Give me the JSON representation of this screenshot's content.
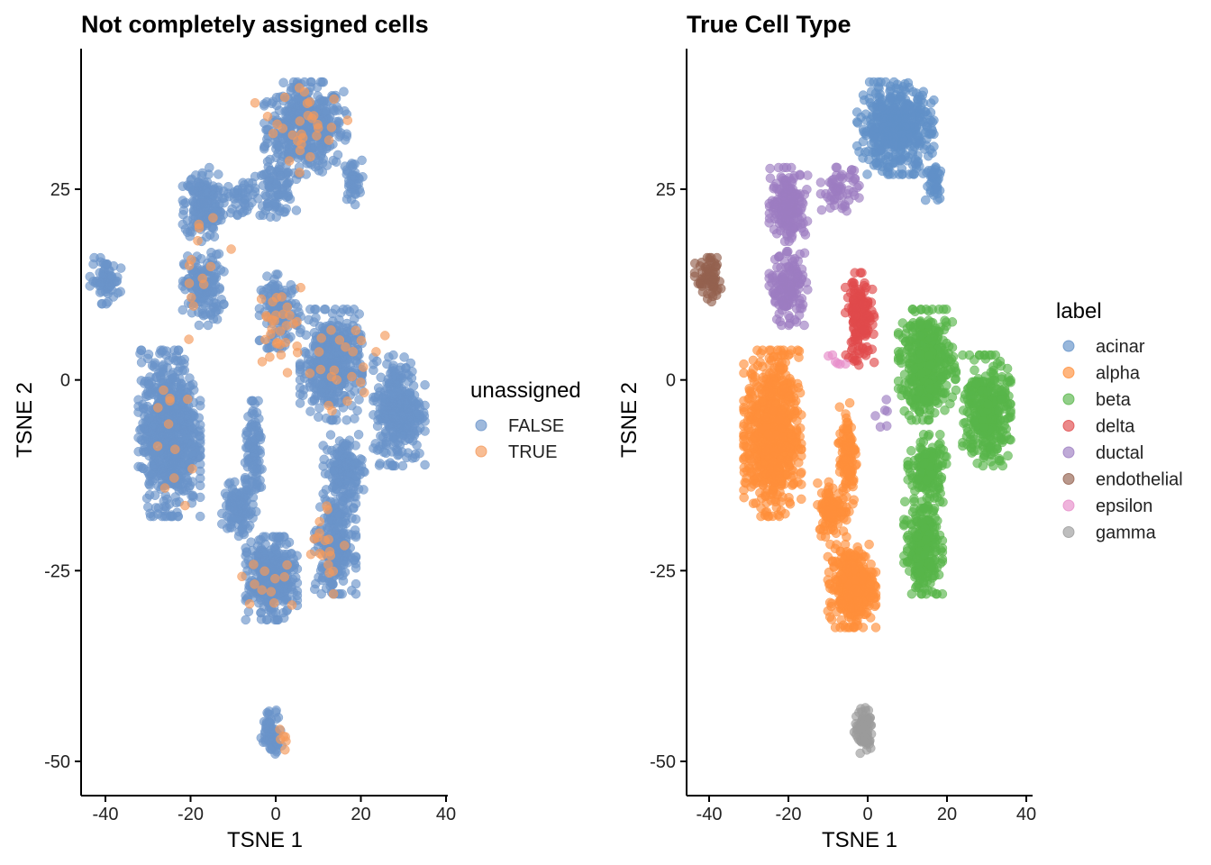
{
  "colors": {
    "acinar": "#6191C8",
    "alpha": "#FF8F3A",
    "beta": "#58B549",
    "delta": "#E04A4B",
    "ductal": "#9C7DC1",
    "endothelial": "#93614F",
    "epsilon": "#E68CC9",
    "gamma": "#9B9B9B",
    "false": "#6A93C9",
    "true": "#F4995B"
  },
  "chart_data": [
    {
      "type": "scatter",
      "title": "Not completely assigned cells",
      "xlabel": "TSNE 1",
      "ylabel": "TSNE 2",
      "xlim": [
        -45,
        40
      ],
      "ylim": [
        -54,
        43
      ],
      "xticks": [
        -40,
        -20,
        0,
        20,
        40
      ],
      "yticks": [
        25,
        0,
        -25,
        -50
      ],
      "legend": {
        "title": "unassigned",
        "position": "right",
        "entries": [
          {
            "label": "FALSE",
            "key": "false"
          },
          {
            "label": "TRUE",
            "key": "true"
          }
        ]
      },
      "clusters": [
        {
          "cx": 7,
          "cy": 33,
          "rx": 8,
          "ry": 5,
          "n": 460,
          "key": "false"
        },
        {
          "cx": 0,
          "cy": 25,
          "rx": 4,
          "ry": 3,
          "n": 90,
          "key": "false"
        },
        {
          "cx": 18,
          "cy": 26,
          "rx": 2,
          "ry": 2.5,
          "n": 40,
          "key": "false"
        },
        {
          "cx": -17,
          "cy": 23,
          "rx": 4,
          "ry": 4,
          "n": 190,
          "key": "false"
        },
        {
          "cx": -17,
          "cy": 12,
          "rx": 4,
          "ry": 4,
          "n": 150,
          "key": "false"
        },
        {
          "cx": -8,
          "cy": 24,
          "rx": 3,
          "ry": 2,
          "n": 40,
          "key": "false"
        },
        {
          "cx": -40,
          "cy": 13,
          "rx": 3,
          "ry": 2.5,
          "n": 70,
          "key": "false"
        },
        {
          "cx": 1,
          "cy": 9,
          "rx": 4,
          "ry": 4,
          "n": 130,
          "key": "false"
        },
        {
          "cx": 13,
          "cy": 2,
          "rx": 6,
          "ry": 6,
          "n": 400,
          "key": "false"
        },
        {
          "cx": 29,
          "cy": -4,
          "rx": 5,
          "ry": 6,
          "n": 330,
          "key": "false"
        },
        {
          "cx": 16,
          "cy": -12,
          "rx": 4,
          "ry": 4,
          "n": 150,
          "key": "false"
        },
        {
          "cx": -25,
          "cy": -7,
          "rx": 6,
          "ry": 9,
          "n": 720,
          "key": "false"
        },
        {
          "cx": -5,
          "cy": -10,
          "rx": 2,
          "ry": 6,
          "n": 110,
          "key": "false"
        },
        {
          "cx": -9,
          "cy": -17,
          "rx": 3,
          "ry": 3,
          "n": 110,
          "key": "false"
        },
        {
          "cx": 14,
          "cy": -22,
          "rx": 4,
          "ry": 5,
          "n": 260,
          "key": "false"
        },
        {
          "cx": -1,
          "cy": -26,
          "rx": 5,
          "ry": 4.5,
          "n": 360,
          "key": "false"
        },
        {
          "cx": -1,
          "cy": -46,
          "rx": 2,
          "ry": 2.5,
          "n": 70,
          "key": "false"
        },
        {
          "cx": 6,
          "cy": 33,
          "rx": 9,
          "ry": 5,
          "n": 30,
          "key": "true"
        },
        {
          "cx": -16,
          "cy": 15,
          "rx": 6,
          "ry": 8,
          "n": 14,
          "key": "true"
        },
        {
          "cx": 1,
          "cy": 7,
          "rx": 5,
          "ry": 5,
          "n": 30,
          "key": "true"
        },
        {
          "cx": 16,
          "cy": 2,
          "rx": 8,
          "ry": 5,
          "n": 22,
          "key": "true"
        },
        {
          "cx": -24,
          "cy": -8,
          "rx": 7,
          "ry": 7,
          "n": 12,
          "key": "true"
        },
        {
          "cx": 12,
          "cy": -22,
          "rx": 4,
          "ry": 5,
          "n": 18,
          "key": "true"
        },
        {
          "cx": -2,
          "cy": -26,
          "rx": 5,
          "ry": 4,
          "n": 12,
          "key": "true"
        },
        {
          "cx": 2,
          "cy": -47,
          "rx": 2,
          "ry": 2,
          "n": 6,
          "key": "true"
        }
      ]
    },
    {
      "type": "scatter",
      "title": "True Cell Type",
      "xlabel": "TSNE 1",
      "ylabel": "TSNE 2",
      "xlim": [
        -45,
        40
      ],
      "ylim": [
        -54,
        43
      ],
      "xticks": [
        -40,
        -20,
        0,
        20,
        40
      ],
      "yticks": [
        25,
        0,
        -25,
        -50
      ],
      "legend": {
        "title": "label",
        "position": "right",
        "entries": [
          {
            "label": "acinar",
            "key": "acinar"
          },
          {
            "label": "alpha",
            "key": "alpha"
          },
          {
            "label": "beta",
            "key": "beta"
          },
          {
            "label": "delta",
            "key": "delta"
          },
          {
            "label": "ductal",
            "key": "ductal"
          },
          {
            "label": "endothelial",
            "key": "endothelial"
          },
          {
            "label": "epsilon",
            "key": "epsilon"
          },
          {
            "label": "gamma",
            "key": "gamma"
          }
        ]
      },
      "clusters": [
        {
          "cx": 7,
          "cy": 33,
          "rx": 8,
          "ry": 5,
          "n": 480,
          "key": "acinar"
        },
        {
          "cx": 17,
          "cy": 26,
          "rx": 2,
          "ry": 2.5,
          "n": 40,
          "key": "acinar"
        },
        {
          "cx": -20,
          "cy": 23,
          "rx": 4,
          "ry": 4,
          "n": 190,
          "key": "ductal"
        },
        {
          "cx": -20,
          "cy": 12,
          "rx": 4,
          "ry": 4,
          "n": 160,
          "key": "ductal"
        },
        {
          "cx": -7,
          "cy": 25,
          "rx": 4,
          "ry": 2.5,
          "n": 60,
          "key": "ductal"
        },
        {
          "cx": -40,
          "cy": 13,
          "rx": 3,
          "ry": 2.5,
          "n": 70,
          "key": "endothelial"
        },
        {
          "cx": -2,
          "cy": 8,
          "rx": 3,
          "ry": 5,
          "n": 160,
          "key": "delta"
        },
        {
          "cx": 15,
          "cy": 2,
          "rx": 6,
          "ry": 6,
          "n": 420,
          "key": "beta"
        },
        {
          "cx": 30,
          "cy": -4,
          "rx": 5,
          "ry": 6,
          "n": 340,
          "key": "beta"
        },
        {
          "cx": 15,
          "cy": -12,
          "rx": 4,
          "ry": 4,
          "n": 160,
          "key": "beta"
        },
        {
          "cx": 14,
          "cy": -22,
          "rx": 4,
          "ry": 5,
          "n": 260,
          "key": "beta"
        },
        {
          "cx": -24,
          "cy": -7,
          "rx": 6,
          "ry": 9,
          "n": 730,
          "key": "alpha"
        },
        {
          "cx": -5,
          "cy": -10,
          "rx": 2,
          "ry": 6,
          "n": 110,
          "key": "alpha"
        },
        {
          "cx": -9,
          "cy": -17,
          "rx": 3,
          "ry": 3,
          "n": 110,
          "key": "alpha"
        },
        {
          "cx": -4,
          "cy": -27,
          "rx": 5,
          "ry": 4.5,
          "n": 360,
          "key": "alpha"
        },
        {
          "cx": -1,
          "cy": -46,
          "rx": 2,
          "ry": 2.5,
          "n": 80,
          "key": "gamma"
        },
        {
          "cx": -8,
          "cy": 3,
          "rx": 2,
          "ry": 2,
          "n": 6,
          "key": "epsilon"
        },
        {
          "cx": 4,
          "cy": -5,
          "rx": 2,
          "ry": 2,
          "n": 6,
          "key": "ductal"
        }
      ]
    }
  ]
}
